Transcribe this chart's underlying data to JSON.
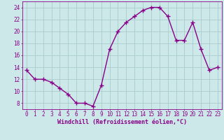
{
  "x": [
    0,
    1,
    2,
    3,
    4,
    5,
    6,
    7,
    8,
    9,
    10,
    11,
    12,
    13,
    14,
    15,
    16,
    17,
    18,
    19,
    20,
    21,
    22,
    23
  ],
  "y": [
    13.5,
    12.0,
    12.0,
    11.5,
    10.5,
    9.5,
    8.0,
    8.0,
    7.5,
    11.0,
    17.0,
    20.0,
    21.5,
    22.5,
    23.5,
    24.0,
    24.0,
    22.5,
    18.5,
    18.5,
    21.5,
    17.0,
    13.5,
    14.0
  ],
  "line_color": "#880088",
  "marker": "+",
  "marker_size": 4,
  "marker_lw": 1.0,
  "line_width": 1.0,
  "bg_color": "#cce8e8",
  "grid_color": "#aacccc",
  "xlabel": "Windchill (Refroidissement éolien,°C)",
  "xlim": [
    -0.5,
    23.5
  ],
  "ylim": [
    7,
    25
  ],
  "yticks": [
    8,
    10,
    12,
    14,
    16,
    18,
    20,
    22,
    24
  ],
  "xticks": [
    0,
    1,
    2,
    3,
    4,
    5,
    6,
    7,
    8,
    9,
    10,
    11,
    12,
    13,
    14,
    15,
    16,
    17,
    18,
    19,
    20,
    21,
    22,
    23
  ],
  "tick_color": "#880088",
  "xlabel_fontsize": 6.0,
  "tick_fontsize": 5.5
}
